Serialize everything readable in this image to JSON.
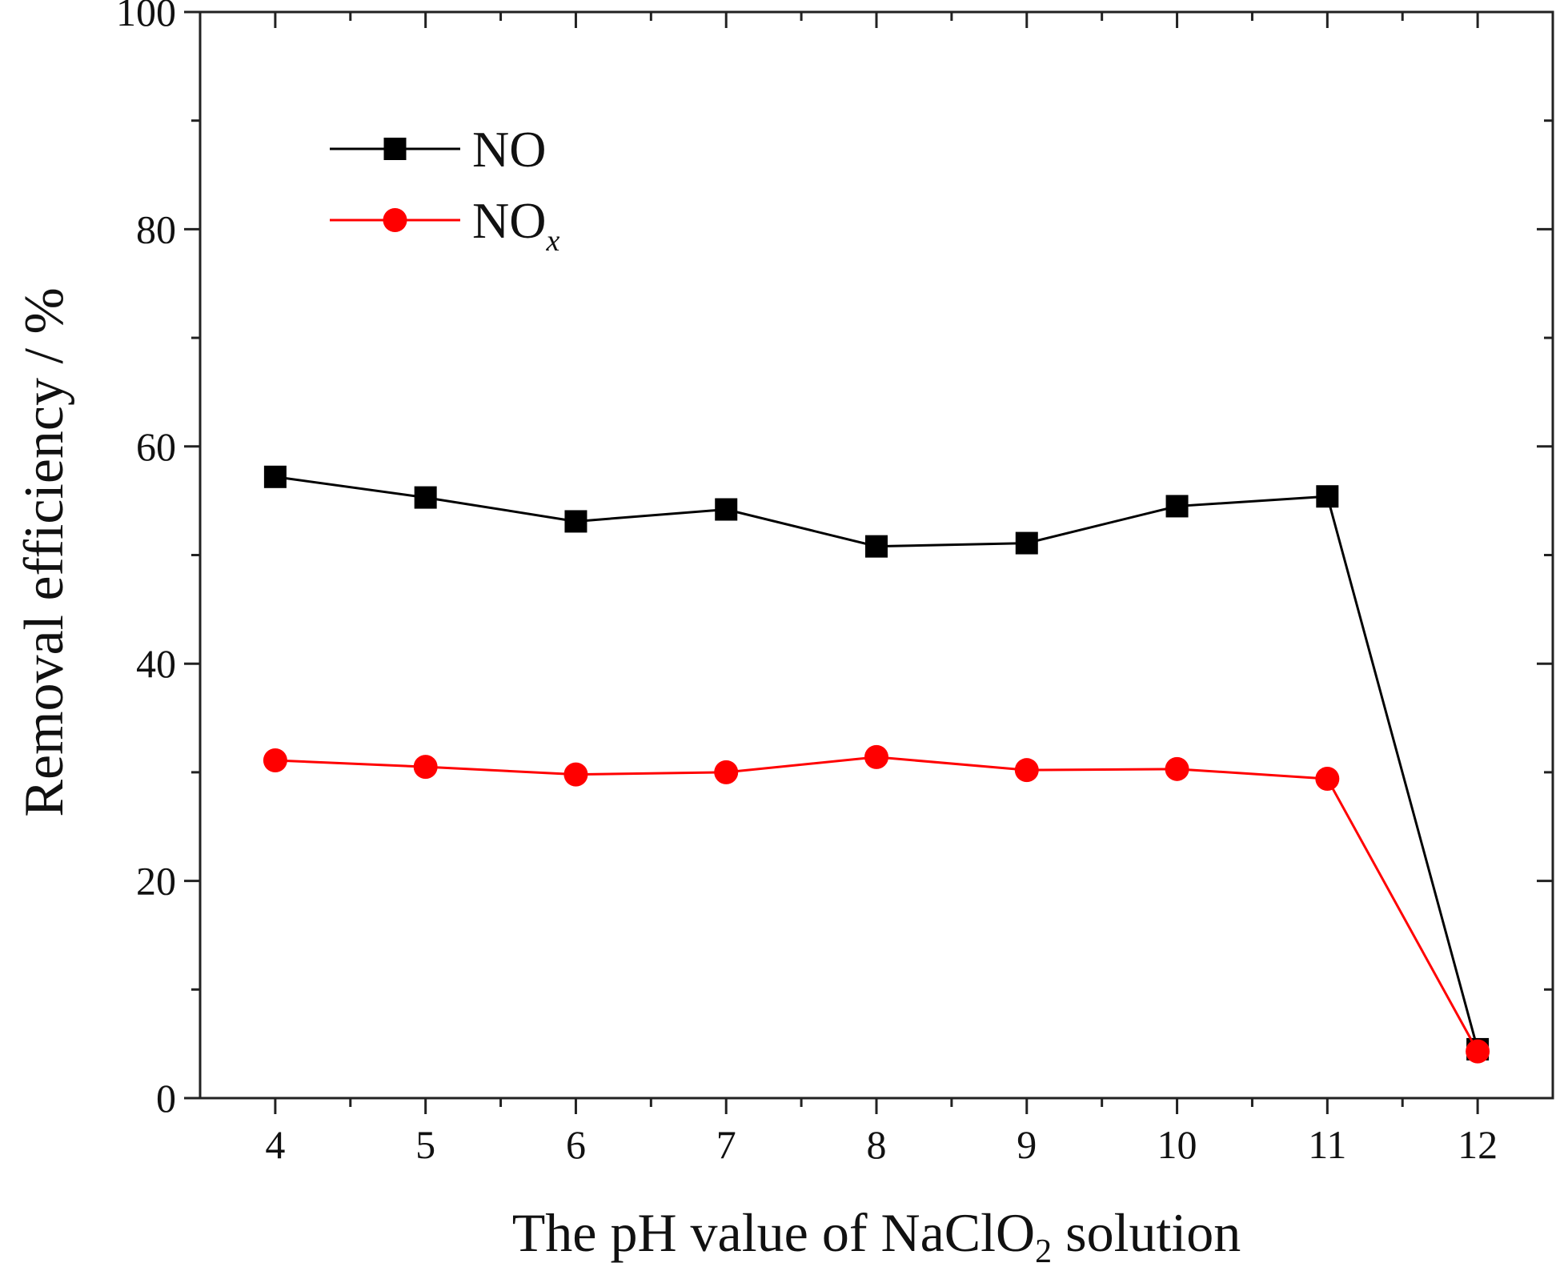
{
  "chart_data": {
    "type": "line",
    "title": "",
    "xlabel_parts": [
      "The pH value of NaClO",
      "2",
      " solution"
    ],
    "ylabel": "Removal efficiency  / %",
    "x": [
      4,
      5,
      6,
      7,
      8,
      9,
      10,
      11,
      12
    ],
    "xlim": [
      3.5,
      12.5
    ],
    "ylim": [
      0,
      100
    ],
    "x_ticks": [
      "4",
      "5",
      "6",
      "7",
      "8",
      "9",
      "10",
      "11",
      "12"
    ],
    "y_ticks": [
      "0",
      "20",
      "40",
      "60",
      "80",
      "100"
    ],
    "y_tick_values": [
      0,
      20,
      40,
      60,
      80,
      100
    ],
    "y_minor_values": [
      10,
      30,
      50,
      70,
      90
    ],
    "grid": false,
    "legend_position": "top-left",
    "series": [
      {
        "name": "NO",
        "legend_base": "NO",
        "legend_sub": "",
        "marker": "square",
        "color": "#000000",
        "values": [
          57.2,
          55.3,
          53.1,
          54.2,
          50.8,
          51.1,
          54.5,
          55.4,
          4.5
        ]
      },
      {
        "name": "NOx",
        "legend_base": "NO",
        "legend_sub": "x",
        "marker": "circle",
        "color": "#ff0000",
        "values": [
          31.1,
          30.5,
          29.8,
          30.0,
          31.4,
          30.2,
          30.3,
          29.4,
          4.3
        ]
      }
    ]
  }
}
